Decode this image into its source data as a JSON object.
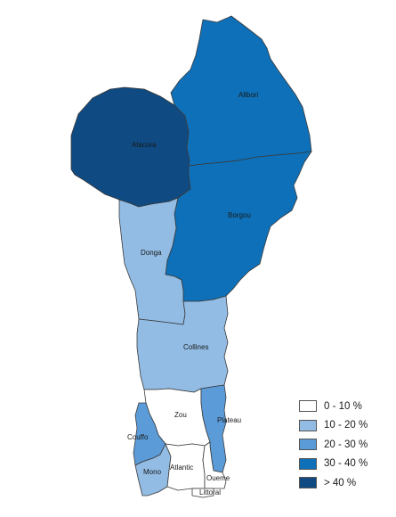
{
  "legend": [
    {
      "label": "0 - 10 %",
      "color": "#ffffff"
    },
    {
      "label": "10 - 20 %",
      "color": "#92bce4"
    },
    {
      "label": "20 - 30 %",
      "color": "#5b9bd8"
    },
    {
      "label": "30 - 40 %",
      "color": "#0e70b8"
    },
    {
      "label": "> 40 %",
      "color": "#0f4a82"
    }
  ],
  "regions": {
    "alibori": {
      "name": "Alibori",
      "class_color": "#0e70b8"
    },
    "atacora": {
      "name": "Atacora",
      "class_color": "#0f4a82"
    },
    "borgou": {
      "name": "Borgou",
      "class_color": "#0e70b8"
    },
    "donga": {
      "name": "Donga",
      "class_color": "#92bce4"
    },
    "collines": {
      "name": "Collines",
      "class_color": "#92bce4"
    },
    "zou": {
      "name": "Zou",
      "class_color": "#ffffff"
    },
    "plateau": {
      "name": "Plateau",
      "class_color": "#5b9bd8"
    },
    "couffo": {
      "name": "Couffo",
      "class_color": "#5b9bd8"
    },
    "mono": {
      "name": "Mono",
      "class_color": "#92bce4"
    },
    "atlantic": {
      "name": "Atlantic",
      "class_color": "#ffffff"
    },
    "oueme": {
      "name": "Oueme",
      "class_color": "#ffffff"
    },
    "littoral": {
      "name": "Littoral",
      "class_color": "#ffffff"
    }
  }
}
